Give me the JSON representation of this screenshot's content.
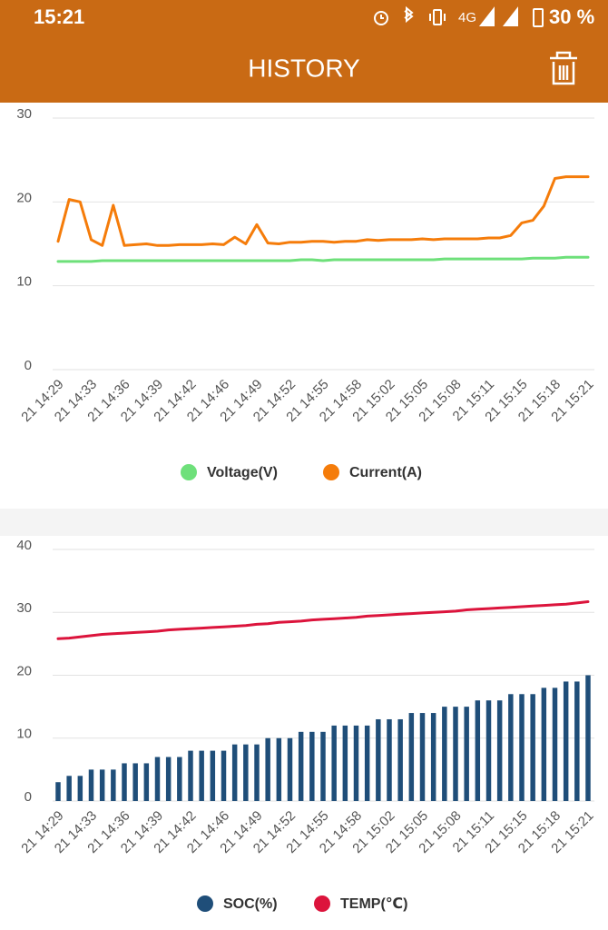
{
  "status_bar": {
    "time": "15:21",
    "network": "4G",
    "battery": "30 %"
  },
  "header": {
    "title": "HISTORY"
  },
  "chart_data": [
    {
      "type": "line",
      "categories": [
        "21 14:29",
        null,
        null,
        "21 14:33",
        null,
        null,
        "21 14:36",
        null,
        null,
        "21 14:39",
        null,
        null,
        "21 14:42",
        null,
        null,
        "21 14:46",
        null,
        null,
        "21 14:49",
        null,
        null,
        "21 14:52",
        null,
        null,
        "21 14:55",
        null,
        null,
        "21 14:58",
        null,
        null,
        "21 15:02",
        null,
        null,
        "21 15:05",
        null,
        null,
        "21 15:08",
        null,
        null,
        "21 15:11",
        null,
        null,
        "21 15:15",
        null,
        null,
        "21 15:18",
        null,
        null,
        "21 15:21"
      ],
      "series": [
        {
          "name": "Voltage(V)",
          "color": "#6ee07a",
          "values": [
            12.9,
            12.9,
            12.9,
            12.9,
            13.0,
            13.0,
            13.0,
            13.0,
            13.0,
            13.0,
            13.0,
            13.0,
            13.0,
            13.0,
            13.0,
            13.0,
            13.0,
            13.0,
            13.0,
            13.0,
            13.0,
            13.0,
            13.1,
            13.1,
            13.0,
            13.1,
            13.1,
            13.1,
            13.1,
            13.1,
            13.1,
            13.1,
            13.1,
            13.1,
            13.1,
            13.2,
            13.2,
            13.2,
            13.2,
            13.2,
            13.2,
            13.2,
            13.2,
            13.3,
            13.3,
            13.3,
            13.4,
            13.4,
            13.4
          ]
        },
        {
          "name": "Current(A)",
          "color": "#f57c0a",
          "values": [
            15.3,
            20.3,
            20.0,
            15.5,
            14.8,
            19.6,
            14.8,
            14.9,
            15.0,
            14.8,
            14.8,
            14.9,
            14.9,
            14.9,
            15.0,
            14.9,
            15.8,
            15.0,
            17.3,
            15.1,
            15.0,
            15.2,
            15.2,
            15.3,
            15.3,
            15.2,
            15.3,
            15.3,
            15.5,
            15.4,
            15.5,
            15.5,
            15.5,
            15.6,
            15.5,
            15.6,
            15.6,
            15.6,
            15.6,
            15.7,
            15.7,
            16.0,
            17.5,
            17.8,
            19.5,
            22.8,
            23.0,
            23.0,
            23.0
          ]
        }
      ],
      "ylim": [
        0,
        30
      ],
      "yticks": [
        0,
        10,
        20,
        30
      ],
      "grid": true
    },
    {
      "type": "bar",
      "categories": [
        "21 14:29",
        null,
        null,
        "21 14:33",
        null,
        null,
        "21 14:36",
        null,
        null,
        "21 14:39",
        null,
        null,
        "21 14:42",
        null,
        null,
        "21 14:46",
        null,
        null,
        "21 14:49",
        null,
        null,
        "21 14:52",
        null,
        null,
        "21 14:55",
        null,
        null,
        "21 14:58",
        null,
        null,
        "21 15:02",
        null,
        null,
        "21 15:05",
        null,
        null,
        "21 15:08",
        null,
        null,
        "21 15:11",
        null,
        null,
        "21 15:15",
        null,
        null,
        "21 15:18",
        null,
        null,
        "21 15:21"
      ],
      "series": [
        {
          "name": "SOC(%)",
          "type": "bar",
          "color": "#1f4e79",
          "values": [
            3,
            4,
            4,
            5,
            5,
            5,
            6,
            6,
            6,
            7,
            7,
            7,
            8,
            8,
            8,
            8,
            9,
            9,
            9,
            10,
            10,
            10,
            11,
            11,
            11,
            12,
            12,
            12,
            12,
            13,
            13,
            13,
            14,
            14,
            14,
            15,
            15,
            15,
            16,
            16,
            16,
            17,
            17,
            17,
            18,
            18,
            19,
            19,
            20
          ]
        },
        {
          "name": "TEMP(℃)",
          "type": "line",
          "color": "#dc143c",
          "values": [
            25.8,
            25.9,
            26.1,
            26.3,
            26.5,
            26.6,
            26.7,
            26.8,
            26.9,
            27.0,
            27.2,
            27.3,
            27.4,
            27.5,
            27.6,
            27.7,
            27.8,
            27.9,
            28.1,
            28.2,
            28.4,
            28.5,
            28.6,
            28.8,
            28.9,
            29.0,
            29.1,
            29.2,
            29.4,
            29.5,
            29.6,
            29.7,
            29.8,
            29.9,
            30.0,
            30.1,
            30.2,
            30.4,
            30.5,
            30.6,
            30.7,
            30.8,
            30.9,
            31.0,
            31.1,
            31.2,
            31.3,
            31.5,
            31.7
          ]
        }
      ],
      "ylim": [
        0,
        40
      ],
      "yticks": [
        0,
        10,
        20,
        30,
        40
      ],
      "grid": true
    }
  ]
}
